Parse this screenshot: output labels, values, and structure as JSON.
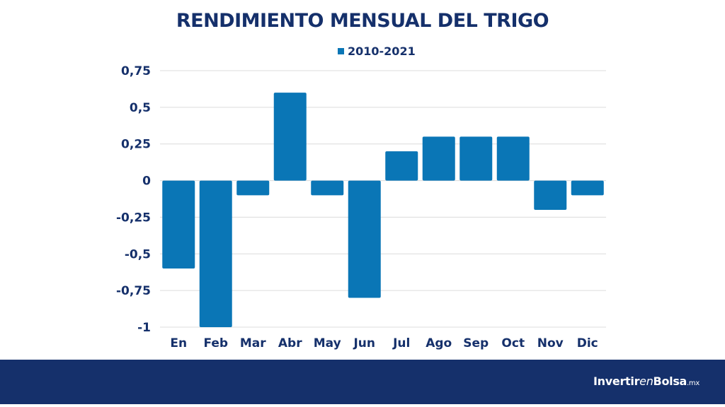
{
  "chart_data": {
    "type": "bar",
    "title": "RENDIMIENTO MENSUAL DEL TRIGO",
    "categories": [
      "En",
      "Feb",
      "Mar",
      "Abr",
      "May",
      "Jun",
      "Jul",
      "Ago",
      "Sep",
      "Oct",
      "Nov",
      "Dic"
    ],
    "series": [
      {
        "name": "2010-2021",
        "values": [
          -0.6,
          -1.0,
          -0.1,
          0.6,
          -0.1,
          -0.8,
          0.2,
          0.3,
          0.3,
          0.3,
          -0.2,
          -0.1
        ]
      }
    ],
    "ylim": [
      -1,
      0.75
    ],
    "yticks": [
      0.75,
      0.5,
      0.25,
      0,
      -0.25,
      -0.5,
      -0.75,
      -1
    ],
    "ytick_labels": [
      "0,75",
      "0,5",
      "0,25",
      "0",
      "-0,25",
      "-0,5",
      "-0,75",
      "-1"
    ],
    "grid": true,
    "legend": "top-center",
    "bar_color": "#0a76b6",
    "grid_color": "#dcdcdc",
    "text_color": "#15306b"
  },
  "footer": {
    "background": "#15306b",
    "brand_part1": "Invertir",
    "brand_part2": "en",
    "brand_part3": "Bolsa",
    "brand_tld": ".mx"
  }
}
